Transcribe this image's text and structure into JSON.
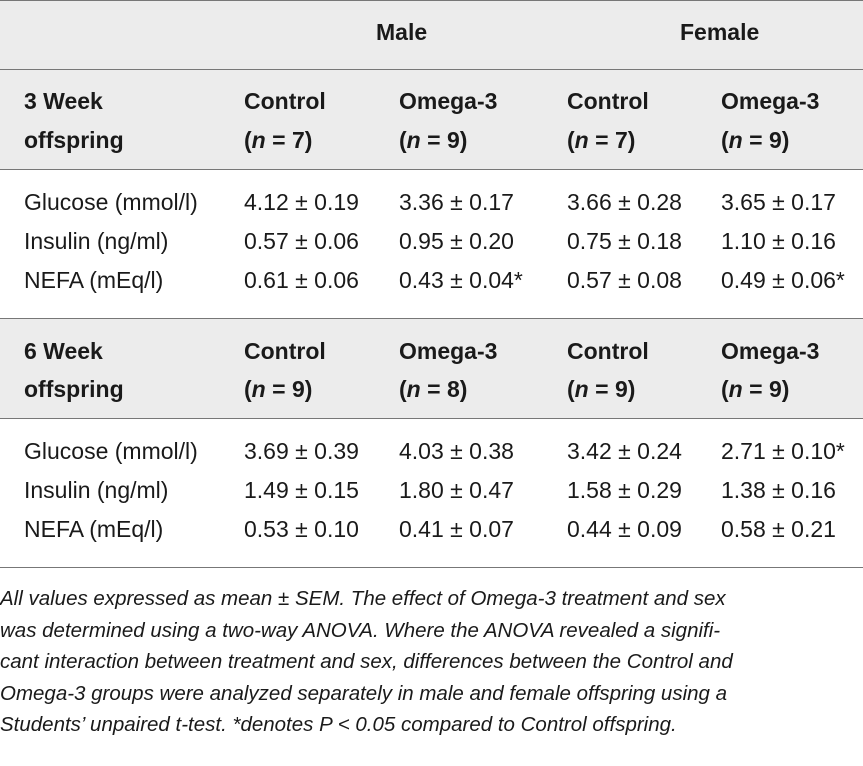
{
  "table": {
    "groups": [
      {
        "label": "Male"
      },
      {
        "label": "Female"
      }
    ],
    "sections": [
      {
        "title_line1": "3 Week",
        "title_line2": "offspring",
        "columns": [
          {
            "label": "Control",
            "n": "(n = 7)",
            "n_prefix": "(",
            "n_var": "n",
            "n_rest": " = 7)"
          },
          {
            "label": "Omega-3",
            "n": "(n = 9)",
            "n_prefix": "(",
            "n_var": "n",
            "n_rest": " = 9)"
          },
          {
            "label": "Control",
            "n": "(n = 7)",
            "n_prefix": "(",
            "n_var": "n",
            "n_rest": " = 7)"
          },
          {
            "label": "Omega-3",
            "n": "(n = 9)",
            "n_prefix": "(",
            "n_var": "n",
            "n_rest": " = 9)"
          }
        ],
        "rows": [
          {
            "label": "Glucose (mmol/l)",
            "values": [
              "4.12 ± 0.19",
              "3.36 ± 0.17",
              "3.66 ± 0.28",
              "3.65 ± 0.17"
            ]
          },
          {
            "label": "Insulin (ng/ml)",
            "values": [
              "0.57 ± 0.06",
              "0.95 ± 0.20",
              "0.75 ± 0.18",
              "1.10 ± 0.16"
            ]
          },
          {
            "label": "NEFA (mEq/l)",
            "values": [
              "0.61 ± 0.06",
              "0.43 ± 0.04*",
              "0.57 ± 0.08",
              "0.49 ± 0.06*"
            ]
          }
        ]
      },
      {
        "title_line1": "6 Week",
        "title_line2": "offspring",
        "columns": [
          {
            "label": "Control",
            "n": "(n = 9)",
            "n_prefix": "(",
            "n_var": "n",
            "n_rest": " = 9)"
          },
          {
            "label": "Omega-3",
            "n": "(n = 8)",
            "n_prefix": "(",
            "n_var": "n",
            "n_rest": " = 8)"
          },
          {
            "label": "Control",
            "n": "(n = 9)",
            "n_prefix": "(",
            "n_var": "n",
            "n_rest": " = 9)"
          },
          {
            "label": "Omega-3",
            "n": "(n = 9)",
            "n_prefix": "(",
            "n_var": "n",
            "n_rest": " = 9)"
          }
        ],
        "rows": [
          {
            "label": "Glucose (mmol/l)",
            "values": [
              "3.69 ± 0.39",
              "4.03 ± 0.38",
              "3.42 ± 0.24",
              "2.71 ± 0.10*"
            ]
          },
          {
            "label": "Insulin (ng/ml)",
            "values": [
              "1.49 ± 0.15",
              "1.80 ± 0.47",
              "1.58 ± 0.29",
              "1.38 ± 0.16"
            ]
          },
          {
            "label": "NEFA (mEq/l)",
            "values": [
              "0.53 ± 0.10",
              "0.41 ± 0.07",
              "0.44 ± 0.09",
              "0.58 ± 0.21"
            ]
          }
        ]
      }
    ]
  },
  "footnote": {
    "lines": [
      "All values expressed as mean ± SEM. The effect of Omega-3 treatment and sex",
      "was determined using a two-way ANOVA. Where the ANOVA revealed a signifi-",
      "cant interaction between treatment and sex, differences between the Control and",
      "Omega-3 groups were analyzed separately in male and female offspring using a",
      "Students’ unpaired t-test. *denotes P < 0.05 compared to Control offspring."
    ]
  }
}
